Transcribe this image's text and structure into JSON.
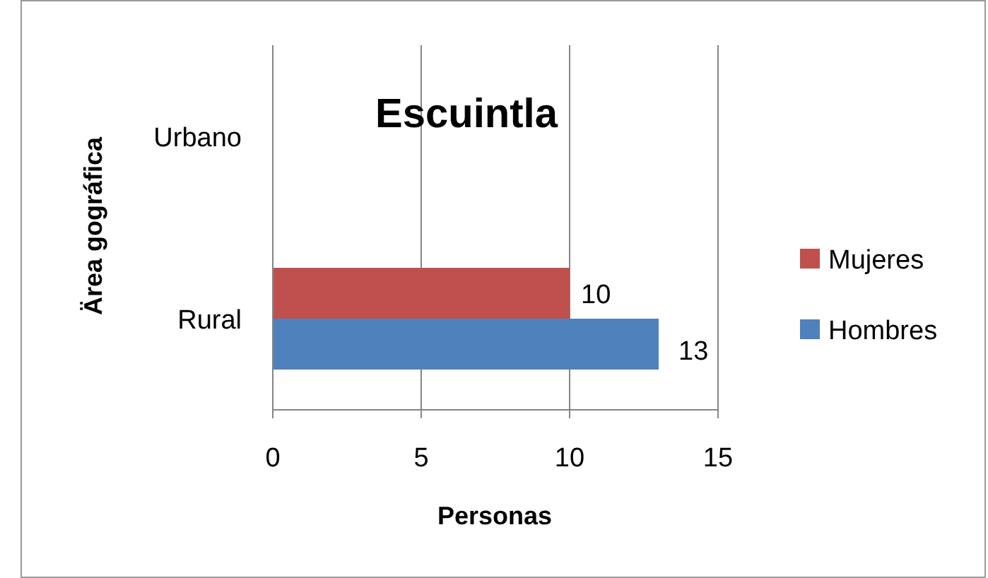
{
  "chart_data": {
    "type": "bar",
    "orientation": "horizontal",
    "title": "Escuintla",
    "xlabel": "Personas",
    "ylabel": "Ärea gográfica",
    "categories": [
      "Urbano",
      "Rural"
    ],
    "series": [
      {
        "name": "Mujeres",
        "color": "#c0504d",
        "values": [
          null,
          10
        ]
      },
      {
        "name": "Hombres",
        "color": "#4f81bd",
        "values": [
          null,
          13
        ]
      }
    ],
    "xlim": [
      0,
      15
    ],
    "xticks": [
      0,
      5,
      10,
      15
    ],
    "grid": "x",
    "legend": "right",
    "data_labels": true
  }
}
